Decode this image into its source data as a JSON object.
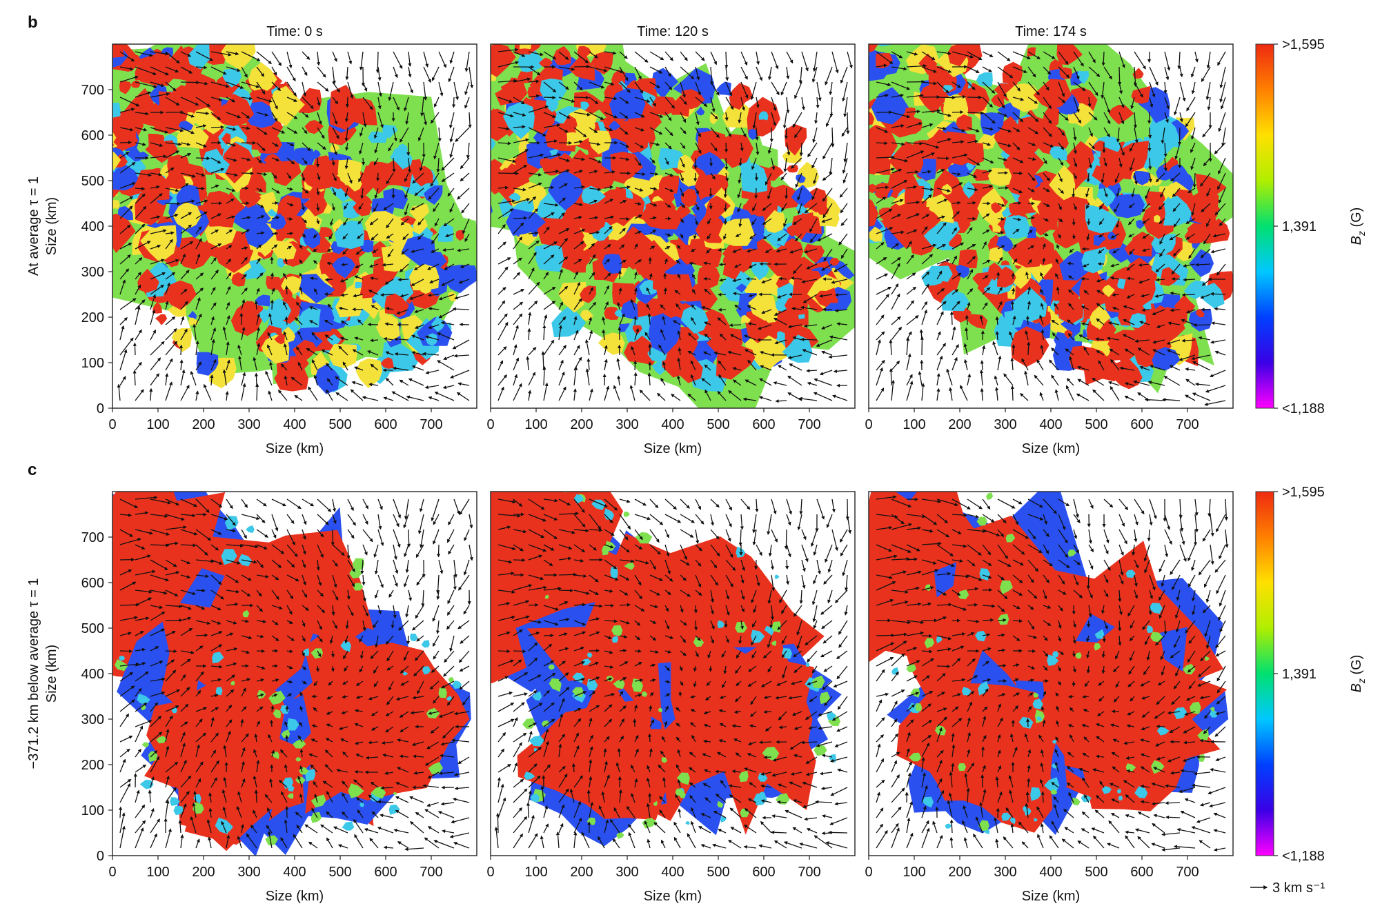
{
  "figure": {
    "colorbar": {
      "label_main": "B",
      "label_sub": "z",
      "label_unit": " (G)",
      "max_label": ">1,595",
      "mid_label": "1,391",
      "min_label": "<1,188",
      "colors": [
        "#ff00ff",
        "#3a00e6",
        "#0040ff",
        "#00c8ff",
        "#00e070",
        "#b0ee00",
        "#ffe000",
        "#ff8000",
        "#ee2a10"
      ]
    },
    "vector_key": {
      "label": "3 km s⁻¹"
    },
    "field_colors": {
      "red": "#e8321e",
      "green": "#7ee04e",
      "yellow": "#f4e23a",
      "cyan": "#3cc8e8",
      "blue": "#2a50f0",
      "white": "#ffffff"
    }
  },
  "chart_data": [
    {
      "type": "heatmap",
      "row_label": "b",
      "title": "Time: 0 s",
      "ylabel_lines": [
        "At average τ = 1",
        "Size (km)"
      ],
      "xlabel": "Size (km)",
      "x_ticks": [
        0,
        100,
        200,
        300,
        400,
        500,
        600,
        700
      ],
      "y_ticks": [
        0,
        100,
        200,
        300,
        400,
        500,
        600,
        700
      ],
      "xlim": [
        0,
        800
      ],
      "ylim": [
        0,
        800
      ],
      "colorbar_range": [
        1188,
        1595
      ],
      "dominant_field": "mixed"
    },
    {
      "type": "heatmap",
      "row_label": "b",
      "title": "Time: 120 s",
      "xlabel": "Size (km)",
      "x_ticks": [
        0,
        100,
        200,
        300,
        400,
        500,
        600,
        700
      ],
      "xlim": [
        0,
        800
      ],
      "ylim": [
        0,
        800
      ],
      "colorbar_range": [
        1188,
        1595
      ],
      "dominant_field": "mixed"
    },
    {
      "type": "heatmap",
      "row_label": "b",
      "title": "Time: 174 s",
      "xlabel": "Size (km)",
      "x_ticks": [
        0,
        100,
        200,
        300,
        400,
        500,
        600,
        700
      ],
      "xlim": [
        0,
        800
      ],
      "ylim": [
        0,
        800
      ],
      "colorbar_range": [
        1188,
        1595
      ],
      "dominant_field": "mixed"
    },
    {
      "type": "heatmap",
      "row_label": "c",
      "ylabel_lines": [
        "−371.2 km below average τ = 1",
        "Size (km)"
      ],
      "xlabel": "Size (km)",
      "x_ticks": [
        0,
        100,
        200,
        300,
        400,
        500,
        600,
        700
      ],
      "y_ticks": [
        0,
        100,
        200,
        300,
        400,
        500,
        600,
        700
      ],
      "xlim": [
        0,
        800
      ],
      "ylim": [
        0,
        800
      ],
      "colorbar_range": [
        1188,
        1595
      ],
      "dominant_field": "strong"
    },
    {
      "type": "heatmap",
      "row_label": "c",
      "xlabel": "Size (km)",
      "x_ticks": [
        0,
        100,
        200,
        300,
        400,
        500,
        600,
        700
      ],
      "xlim": [
        0,
        800
      ],
      "ylim": [
        0,
        800
      ],
      "colorbar_range": [
        1188,
        1595
      ],
      "dominant_field": "strong"
    },
    {
      "type": "heatmap",
      "row_label": "c",
      "xlabel": "Size (km)",
      "x_ticks": [
        0,
        100,
        200,
        300,
        400,
        500,
        600,
        700
      ],
      "xlim": [
        0,
        800
      ],
      "ylim": [
        0,
        800
      ],
      "colorbar_range": [
        1188,
        1595
      ],
      "dominant_field": "strong"
    }
  ]
}
